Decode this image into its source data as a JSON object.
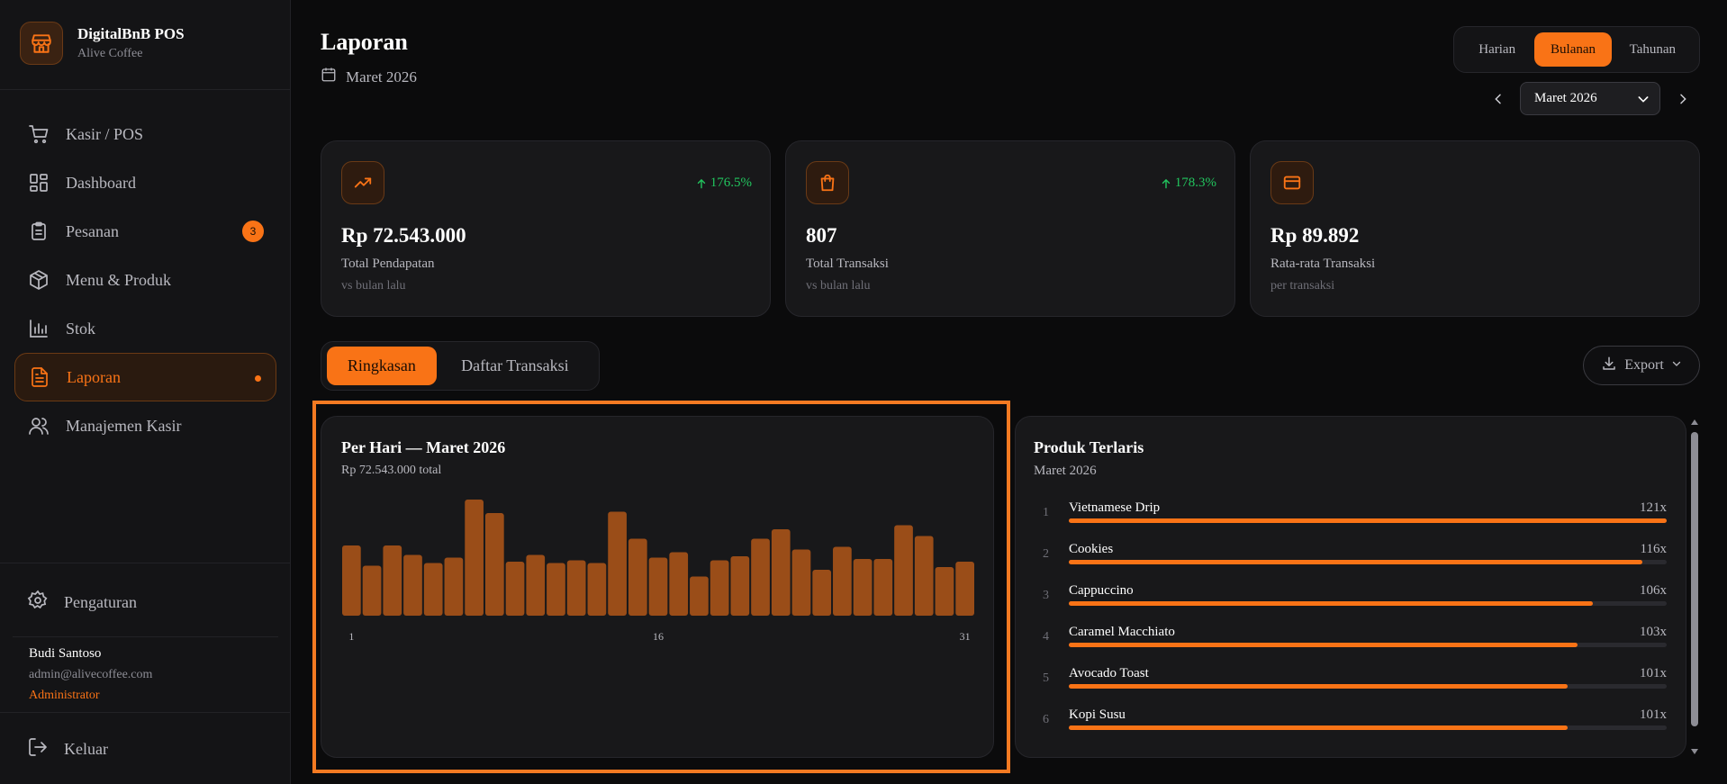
{
  "brand": {
    "name": "DigitalBnB POS",
    "subtitle": "Alive Coffee"
  },
  "sidebar": {
    "items": [
      {
        "label": "Kasir / POS",
        "icon": "cart-icon"
      },
      {
        "label": "Dashboard",
        "icon": "grid-icon"
      },
      {
        "label": "Pesanan",
        "icon": "clipboard-icon",
        "badge": "3"
      },
      {
        "label": "Menu & Produk",
        "icon": "box-icon"
      },
      {
        "label": "Stok",
        "icon": "bar-chart-icon"
      },
      {
        "label": "Laporan",
        "icon": "file-icon",
        "active": true
      },
      {
        "label": "Manajemen Kasir",
        "icon": "users-icon"
      }
    ],
    "settings_label": "Pengaturan",
    "logout_label": "Keluar"
  },
  "user": {
    "name": "Budi Santoso",
    "email": "admin@alivecoffee.com",
    "role": "Administrator"
  },
  "header": {
    "title": "Laporan",
    "date": "Maret 2026",
    "period_tabs": [
      "Harian",
      "Bulanan",
      "Tahunan"
    ],
    "active_period": "Bulanan",
    "month_select_value": "Maret 2026"
  },
  "stats": [
    {
      "value": "Rp 72.543.000",
      "label": "Total Pendapatan",
      "sub": "vs bulan lalu",
      "change": "176.5%",
      "icon": "trending-up-icon"
    },
    {
      "value": "807",
      "label": "Total Transaksi",
      "sub": "vs bulan lalu",
      "change": "178.3%",
      "icon": "shopping-bag-icon"
    },
    {
      "value": "Rp 89.892",
      "label": "Rata-rata Transaksi",
      "sub": "per transaksi",
      "change": "",
      "icon": "credit-card-icon"
    }
  ],
  "view_tabs": {
    "summary": "Ringkasan",
    "transactions": "Daftar Transaksi"
  },
  "export_label": "Export",
  "daily_chart": {
    "title": "Per Hari — Maret 2026",
    "subtitle": "Rp 72.543.000 total"
  },
  "chart_data": {
    "type": "bar",
    "title": "Per Hari — Maret 2026",
    "x": [
      1,
      2,
      3,
      4,
      5,
      6,
      7,
      8,
      9,
      10,
      11,
      12,
      13,
      14,
      15,
      16,
      17,
      18,
      19,
      20,
      21,
      22,
      23,
      24,
      25,
      26,
      27,
      28,
      29,
      30,
      31
    ],
    "x_tick_labels": [
      "1",
      "16",
      "31"
    ],
    "values": [
      2.6,
      1.85,
      2.6,
      2.25,
      1.95,
      2.15,
      4.3,
      3.8,
      2.0,
      2.25,
      1.95,
      2.05,
      1.95,
      3.85,
      2.85,
      2.15,
      2.35,
      1.45,
      2.05,
      2.2,
      2.85,
      3.2,
      2.45,
      1.7,
      2.55,
      2.1,
      2.1,
      3.35,
      2.95,
      1.8,
      2.0
    ],
    "ylim": [
      0,
      4.3
    ],
    "bar_color": "#9a4d18"
  },
  "top_products": {
    "title": "Produk Terlaris",
    "subtitle": "Maret 2026",
    "items": [
      {
        "rank": "1",
        "name": "Vietnamese Drip",
        "count": "121x",
        "share": 1.0
      },
      {
        "rank": "2",
        "name": "Cookies",
        "count": "116x",
        "share": 0.959
      },
      {
        "rank": "3",
        "name": "Cappuccino",
        "count": "106x",
        "share": 0.876
      },
      {
        "rank": "4",
        "name": "Caramel Macchiato",
        "count": "103x",
        "share": 0.851
      },
      {
        "rank": "5",
        "name": "Avocado Toast",
        "count": "101x",
        "share": 0.835
      },
      {
        "rank": "6",
        "name": "Kopi Susu",
        "count": "101x",
        "share": 0.835
      }
    ]
  },
  "colors": {
    "accent": "#f97316",
    "positive": "#22c55e",
    "background": "#0b0b0c",
    "card": "#18181a"
  }
}
